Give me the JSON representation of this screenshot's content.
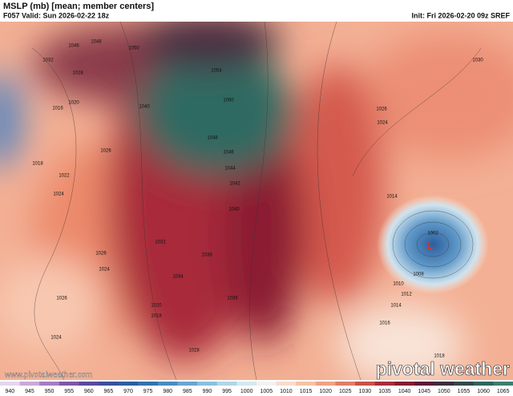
{
  "header": {
    "title": "MSLP (mb) [mean; member centers]",
    "valid": "F057 Valid: Sun 2026-02-22 18z",
    "init": "Init: Fri 2026-02-20 09z SREF"
  },
  "map": {
    "isobar_labels": [
      "1048",
      "1046",
      "1050",
      "1032",
      "1028",
      "1020",
      "1016",
      "1040",
      "1054",
      "1050",
      "1048",
      "1046",
      "1044",
      "1042",
      "1040",
      "1026",
      "1018",
      "1022",
      "1024",
      "1026",
      "1024",
      "1026",
      "1024",
      "1038",
      "1036",
      "1034",
      "1032",
      "1020",
      "1018",
      "1028",
      "1026",
      "1024",
      "1030",
      "1014",
      "1002",
      "1008",
      "1010",
      "1012",
      "1014",
      "1016",
      "1018"
    ],
    "low_marker": "L"
  },
  "watermark": {
    "url": "www.pivotalweather.com",
    "brand": "pivotal weather"
  },
  "colorbar": {
    "ticks": [
      940,
      945,
      950,
      955,
      960,
      965,
      970,
      975,
      980,
      985,
      990,
      995,
      1000,
      1005,
      1010,
      1015,
      1020,
      1025,
      1030,
      1035,
      1040,
      1045,
      1050,
      1055,
      1060,
      1065
    ],
    "colors": [
      "#e6d6ee",
      "#c9a9d9",
      "#a77cc0",
      "#7e58a8",
      "#5b4a9c",
      "#3c4f99",
      "#2d5d9e",
      "#3572ae",
      "#4b8cc0",
      "#6aa6cf",
      "#8cbfdd",
      "#b2d5e8",
      "#d5e8f0",
      "#f2f2f0",
      "#f8dccb",
      "#f6c1a6",
      "#f0a284",
      "#e07e64",
      "#c95248",
      "#a82c38",
      "#861c30",
      "#5c1a35",
      "#3e2b3f",
      "#34474a",
      "#2f6360",
      "#3e7d6e"
    ]
  }
}
